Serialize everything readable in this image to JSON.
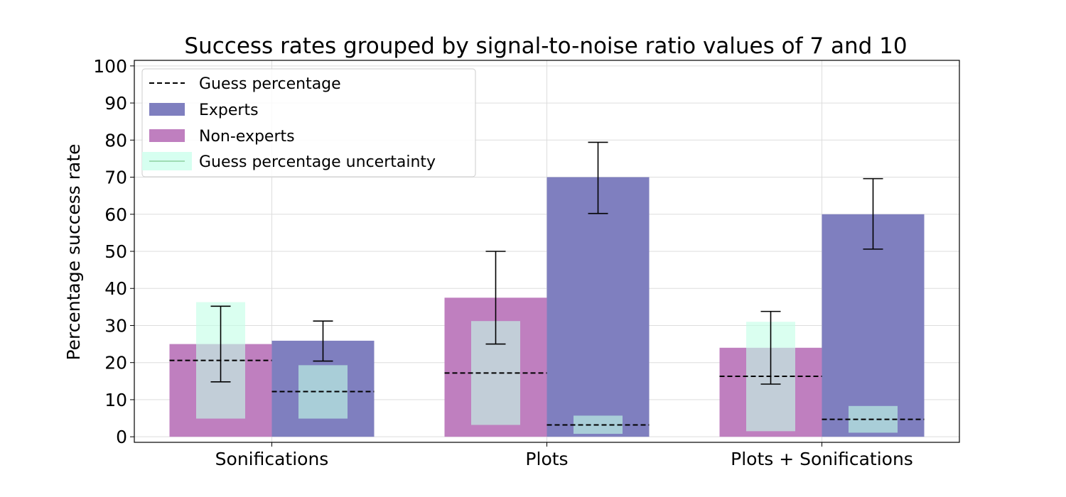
{
  "chart_data": {
    "type": "bar",
    "title": "Success rates grouped by signal-to-noise ratio values of 7 and 10",
    "xlabel": "",
    "ylabel": "Percentage success rate",
    "ylim": [
      -1.5,
      101.5
    ],
    "yticks": [
      0,
      10,
      20,
      30,
      40,
      50,
      60,
      70,
      80,
      90,
      100
    ],
    "grid": true,
    "legend_position": "top-left",
    "categories": [
      "Sonifications",
      "Plots",
      "Plots + Sonifications"
    ],
    "series": [
      {
        "name": "Non-experts",
        "color": "#bf7fbf",
        "values": [
          25.0,
          37.5,
          24.0
        ],
        "error_low": [
          14.8,
          25.0,
          14.2
        ],
        "error_high": [
          35.2,
          50.0,
          33.8
        ],
        "guess_percentage": [
          20.6,
          17.2,
          16.3
        ],
        "guess_uncertainty_low": [
          4.9,
          3.2,
          1.5
        ],
        "guess_uncertainty_high": [
          36.3,
          31.2,
          31.0
        ]
      },
      {
        "name": "Experts",
        "color": "#7f7fbf",
        "values": [
          25.9,
          70.0,
          60.0
        ],
        "error_low": [
          20.4,
          60.2,
          50.6
        ],
        "error_high": [
          31.2,
          79.4,
          69.6
        ],
        "guess_percentage": [
          12.2,
          3.2,
          4.7
        ],
        "guess_uncertainty_low": [
          4.9,
          0.8,
          1.1
        ],
        "guess_uncertainty_high": [
          19.3,
          5.7,
          8.3
        ]
      }
    ],
    "legend": [
      {
        "key": "guess",
        "label": "Guess percentage",
        "style": "dashed-line",
        "color": "#000000"
      },
      {
        "key": "experts",
        "label": "Experts",
        "style": "patch",
        "color": "#7f7fbf"
      },
      {
        "key": "nonexperts",
        "label": "Non-experts",
        "style": "patch",
        "color": "#bf7fbf"
      },
      {
        "key": "uncertainty",
        "label": "Guess percentage uncertainty",
        "style": "patch-line",
        "color": "#d6fff0"
      }
    ]
  }
}
